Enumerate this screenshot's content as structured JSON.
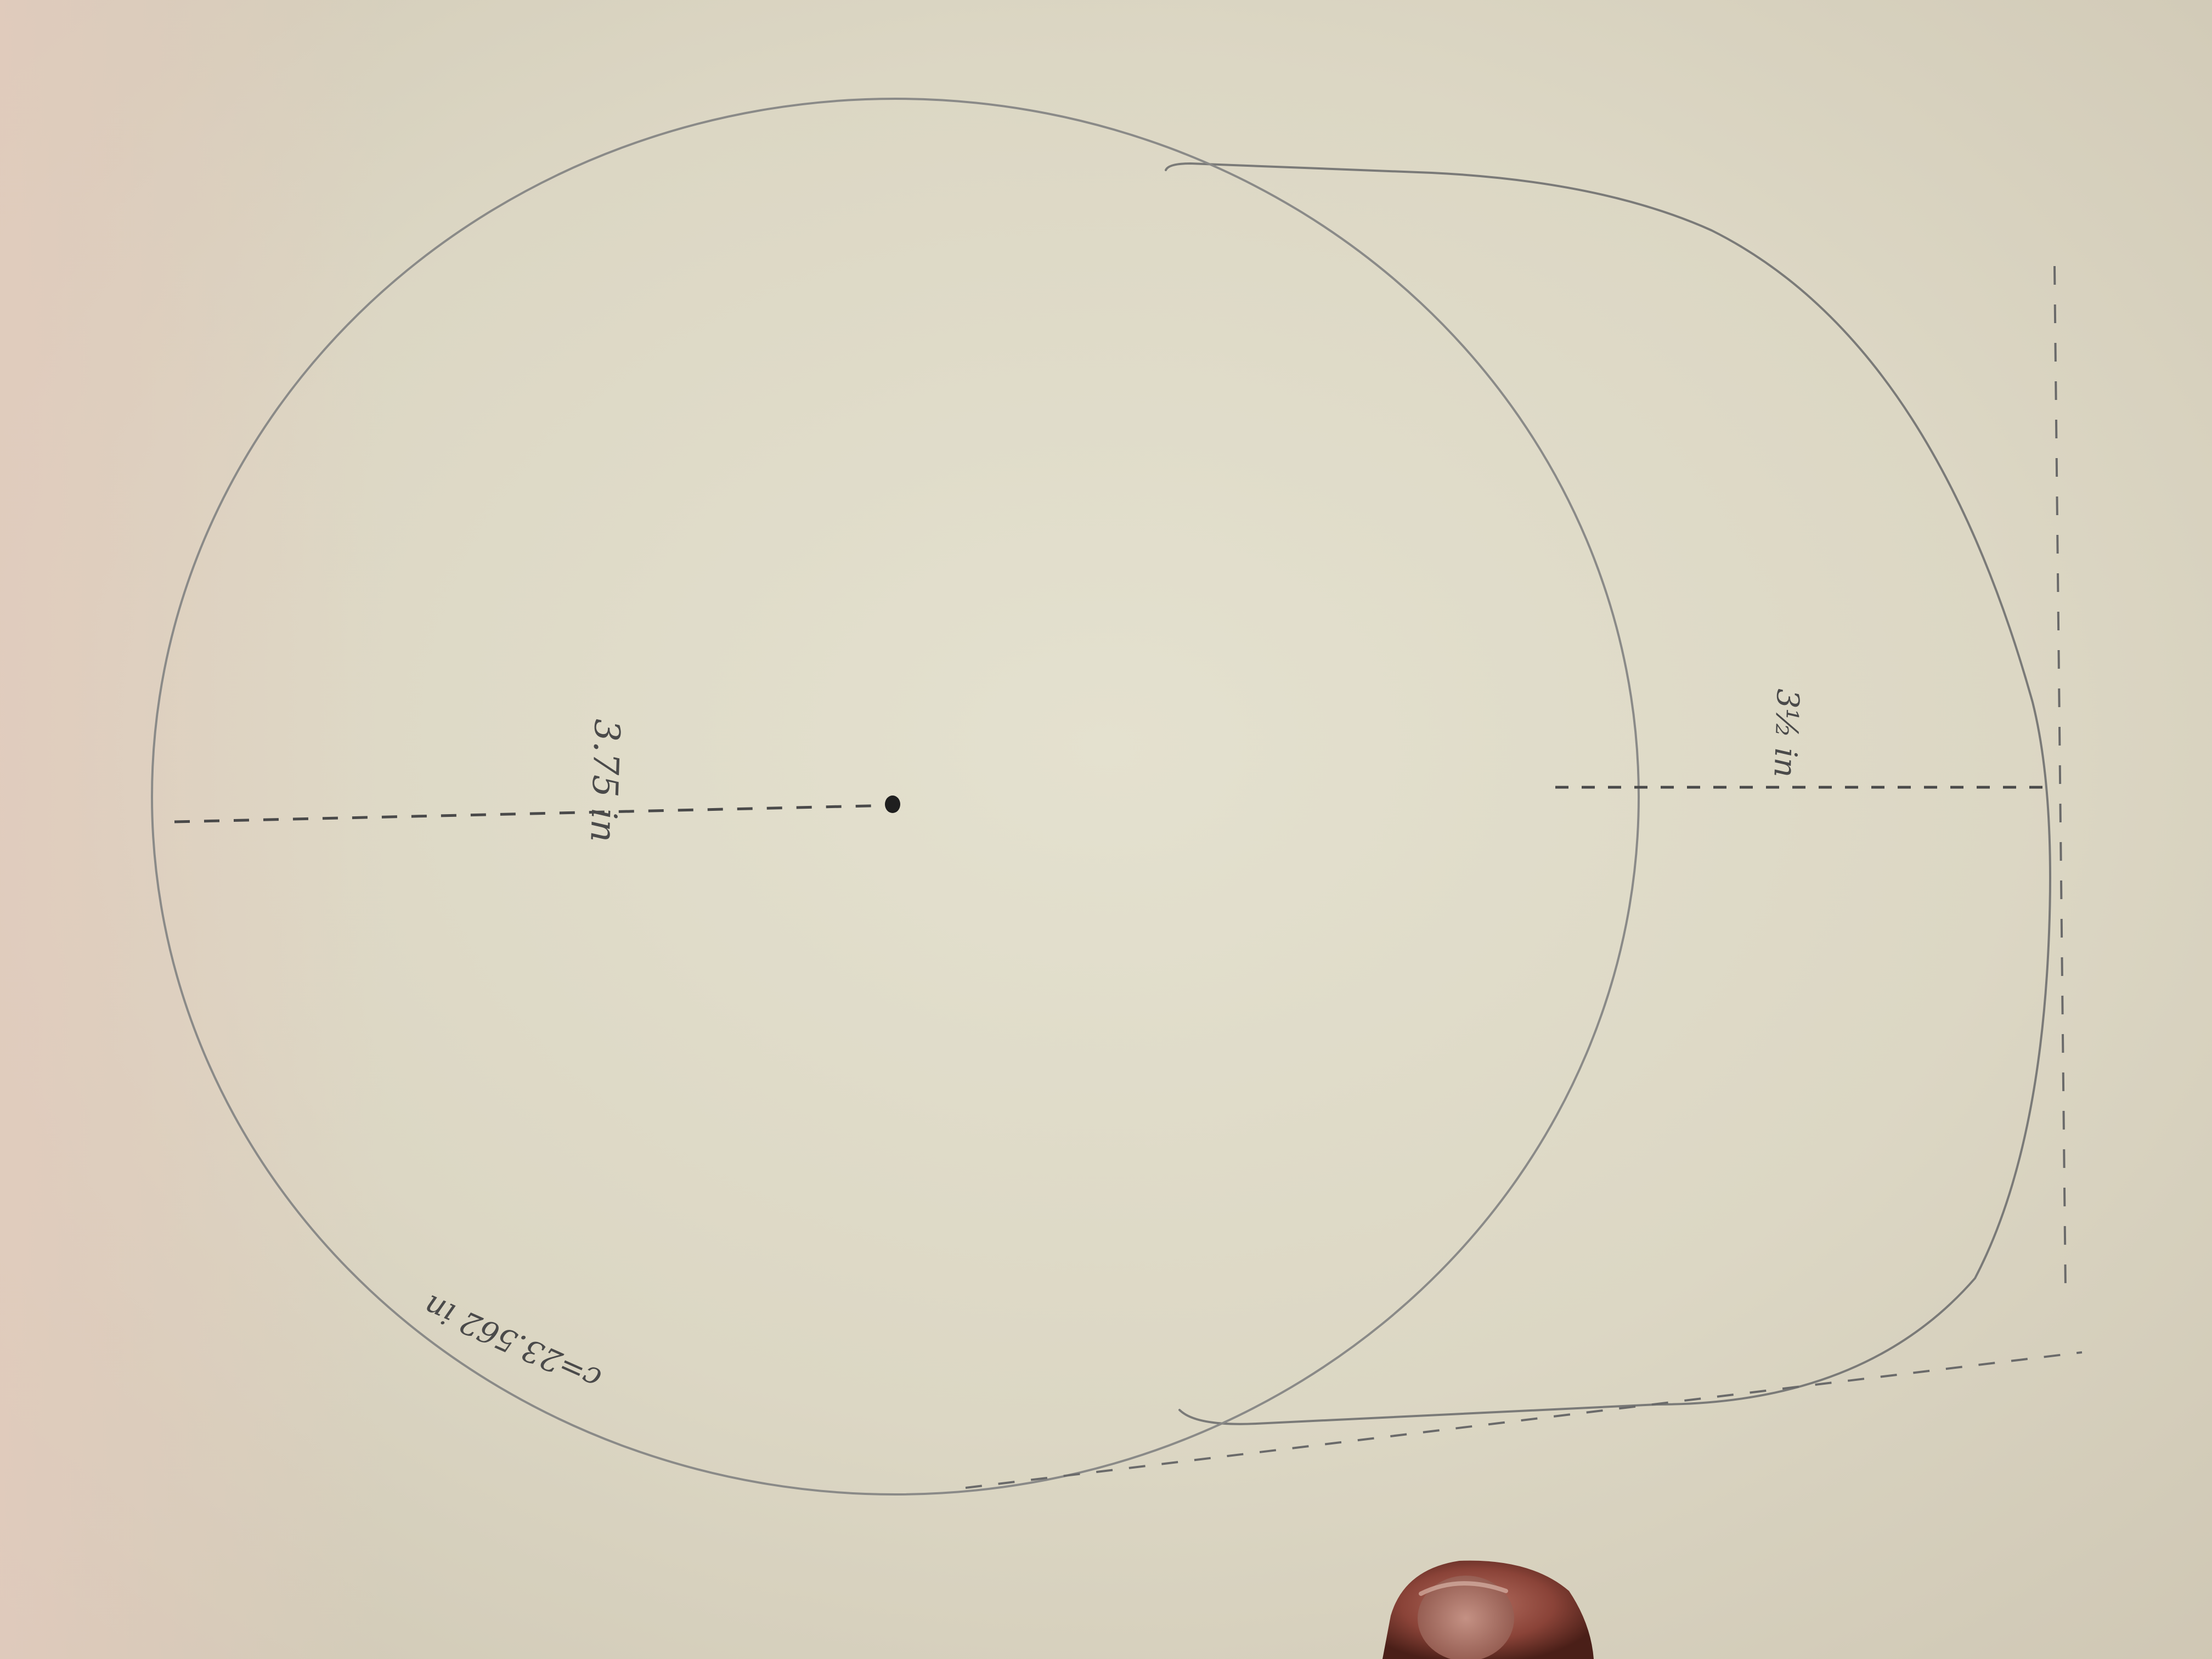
{
  "photo": {
    "subject": "pencil-drawing-on-paper",
    "paper_color": "#ddd8c6",
    "pencil_color": "#6f6f6f"
  },
  "labels": {
    "circle_radius": "3.75 in",
    "brim_depth": "3½ in",
    "circumference": "c=23.562 in"
  }
}
